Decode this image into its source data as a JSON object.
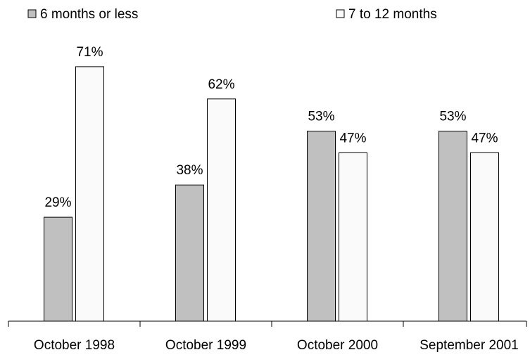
{
  "chart_data": {
    "type": "bar",
    "categories": [
      "October 1998",
      "October 1999",
      "October 2000",
      "September 2001"
    ],
    "series": [
      {
        "name": "6 months or less",
        "color": "#c0c0c0",
        "values": [
          29,
          38,
          53,
          53
        ],
        "value_labels": [
          "29%",
          "38%",
          "53%",
          "53%"
        ]
      },
      {
        "name": "7 to 12 months",
        "color": "#fafafa",
        "values": [
          71,
          62,
          47,
          47
        ],
        "value_labels": [
          "71%",
          "62%",
          "47%",
          "47%"
        ]
      }
    ],
    "legend": "top"
  }
}
